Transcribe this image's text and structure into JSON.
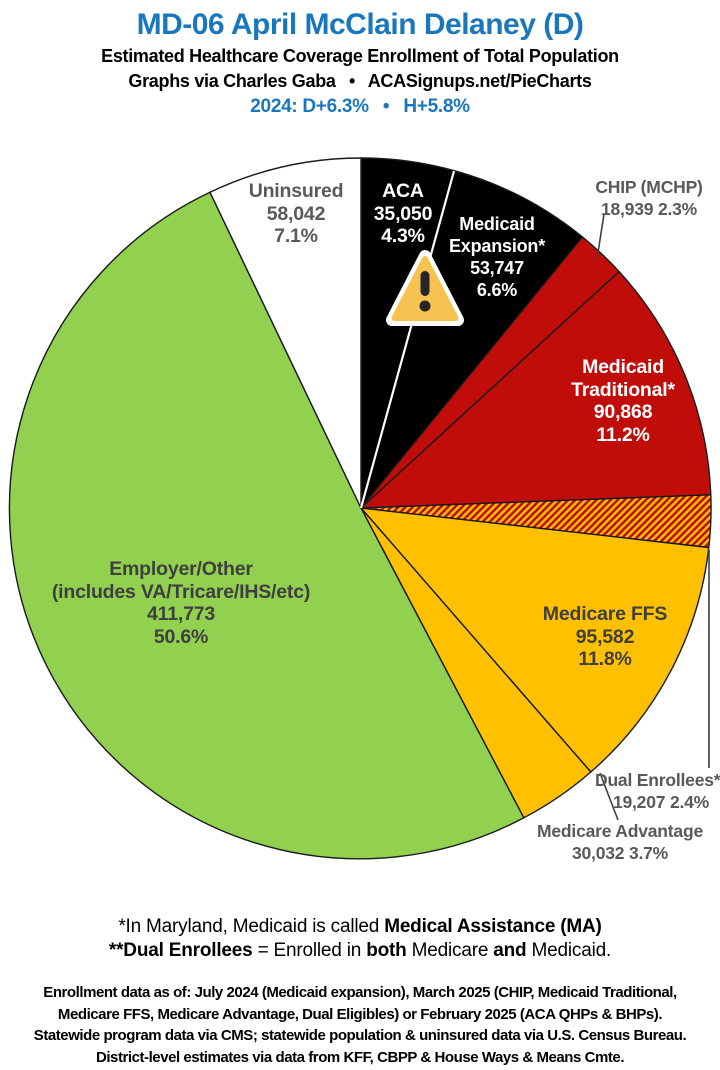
{
  "header": {
    "title": "MD-06 April McClain Delaney (D)",
    "subtitle1": "Estimated Healthcare Coverage Enrollment of Total Population",
    "credit_line": "Graphs via Charles Gaba  •  ACASignups.net/PieCharts",
    "partisan_line": "2024: D+6.3%  •  H+5.8%",
    "title_color": "#1b77bd",
    "partisan_color": "#1b77bd"
  },
  "chart_data": {
    "type": "pie",
    "title": "Estimated Healthcare Coverage Enrollment of Total Population",
    "start_angle_deg": 0,
    "direction": "clockwise",
    "legend_position": "labels-on-slices",
    "colors": {
      "black": "#000000",
      "red": "#c00d0a",
      "gold": "#ffc000",
      "green": "#92d050",
      "white": "#ffffff",
      "hatch": "red-gold-diagonal-stripes"
    },
    "slices": [
      {
        "label": "ACA",
        "value": 35050,
        "pct": 4.3,
        "color": "#000000",
        "lines": [
          "ACA",
          "35,050",
          "4.3%"
        ]
      },
      {
        "label": "Medicaid Expansion*",
        "value": 53747,
        "pct": 6.6,
        "color": "#000000",
        "lines": [
          "Medicaid",
          "Expansion*",
          "53,747",
          "6.6%"
        ]
      },
      {
        "label": "CHIP (MCHP)",
        "value": 18939,
        "pct": 2.3,
        "color": "#c00d0a",
        "lines": [
          "CHIP (MCHP)",
          "18,939 2.3%"
        ]
      },
      {
        "label": "Medicaid Traditional*",
        "value": 90868,
        "pct": 11.2,
        "color": "#c00d0a",
        "lines": [
          "Medicaid",
          "Traditional*",
          "90,868",
          "11.2%"
        ]
      },
      {
        "label": "Dual Enrollees**",
        "value": 19207,
        "pct": 2.4,
        "color": "#c00d0a",
        "pattern": "red-gold-hatch",
        "lines": [
          "Dual Enrollees**",
          "19,207 2.4%"
        ]
      },
      {
        "label": "Medicare FFS",
        "value": 95582,
        "pct": 11.8,
        "color": "#ffc000",
        "lines": [
          "Medicare FFS",
          "95,582",
          "11.8%"
        ]
      },
      {
        "label": "Medicare Advantage",
        "value": 30032,
        "pct": 3.7,
        "color": "#ffc000",
        "lines": [
          "Medicare Advantage",
          "30,032 3.7%"
        ]
      },
      {
        "label": "Employer/Other (includes VA/Tricare/IHS/etc)",
        "value": 411773,
        "pct": 50.6,
        "color": "#92d050",
        "lines": [
          "Employer/Other",
          "(includes VA/Tricare/IHS/etc)",
          "411,773",
          "50.6%"
        ]
      },
      {
        "label": "Uninsured",
        "value": 58042,
        "pct": 7.1,
        "color": "#ffffff",
        "lines": [
          "Uninsured",
          "58,042",
          "7.1%"
        ]
      }
    ]
  },
  "footnotes": {
    "line1": {
      "pre": "*In Maryland, Medicaid is called ",
      "bold": "Medical Assistance (MA)"
    },
    "line2": {
      "bold1": "**Dual Enrollees",
      "mid1": " = Enrolled in ",
      "bold2": "both",
      "mid2": " Medicare ",
      "bold3": "and",
      "end": " Medicaid."
    }
  },
  "source_lines": [
    "Enrollment data as of: July 2024 (Medicaid expansion), March 2025 (CHIP, Medicaid Traditional,",
    "Medicare FFS, Medicare Advantage, Dual Eligibles) or February 2025 (ACA QHPs & BHPs).",
    "Statewide program data via CMS; statewide population & uninsured data via U.S. Census Bureau.",
    "District-level estimates via data from KFF, CBPP & House Ways & Means Cmte."
  ]
}
